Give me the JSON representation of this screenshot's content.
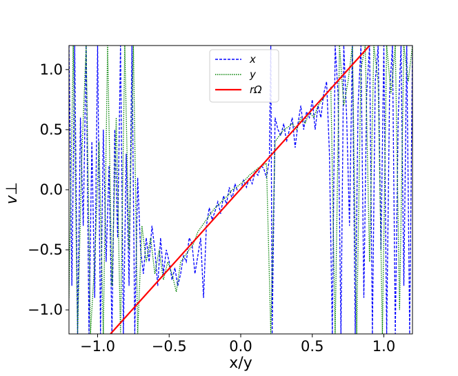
{
  "chart_data": {
    "type": "line",
    "xlabel": "x/y",
    "ylabel": "v⊥",
    "xlim": [
      -1.2,
      1.2
    ],
    "ylim": [
      -1.2,
      1.2
    ],
    "xticks": [
      -1.0,
      -0.5,
      0.0,
      0.5,
      1.0
    ],
    "xtick_labels": [
      "−1.0",
      "−0.5",
      "0.0",
      "0.5",
      "1.0"
    ],
    "yticks": [
      -1.0,
      -0.5,
      0.0,
      0.5,
      1.0
    ],
    "ytick_labels": [
      "−1.0",
      "−0.5",
      "0.0",
      "0.5",
      "1.0"
    ],
    "grid": false,
    "legend_position": "top-center",
    "series": [
      {
        "name": "x",
        "color": "#0000ff",
        "style": "dashed",
        "x": [
          -1.2,
          -1.18,
          -1.16,
          -1.14,
          -1.12,
          -1.1,
          -1.08,
          -1.06,
          -1.04,
          -1.02,
          -1.0,
          -0.98,
          -0.96,
          -0.94,
          -0.92,
          -0.9,
          -0.88,
          -0.86,
          -0.84,
          -0.82,
          -0.8,
          -0.78,
          -0.76,
          -0.74,
          -0.72,
          -0.7,
          -0.68,
          -0.66,
          -0.64,
          -0.62,
          -0.6,
          -0.58,
          -0.56,
          -0.54,
          -0.52,
          -0.5,
          -0.48,
          -0.46,
          -0.44,
          -0.42,
          -0.4,
          -0.38,
          -0.36,
          -0.34,
          -0.32,
          -0.3,
          -0.28,
          -0.26,
          -0.24,
          -0.22,
          -0.2,
          -0.18,
          -0.16,
          -0.14,
          -0.12,
          -0.1,
          -0.08,
          -0.06,
          -0.04,
          -0.02,
          0.0,
          0.02,
          0.04,
          0.06,
          0.08,
          0.1,
          0.12,
          0.14,
          0.16,
          0.18,
          0.2,
          0.21,
          0.22,
          0.24,
          0.26,
          0.28,
          0.3,
          0.32,
          0.34,
          0.36,
          0.38,
          0.4,
          0.42,
          0.44,
          0.46,
          0.48,
          0.5,
          0.52,
          0.54,
          0.56,
          0.58,
          0.6,
          0.62,
          0.64,
          0.66,
          0.68,
          0.7,
          0.72,
          0.74,
          0.76,
          0.78,
          0.8,
          0.82,
          0.84,
          0.86,
          0.88,
          0.9,
          0.92,
          0.94,
          0.96,
          0.98,
          1.0,
          1.02,
          1.04,
          1.06,
          1.08,
          1.1,
          1.12,
          1.14,
          1.16,
          1.18,
          1.2
        ],
        "y": [
          1.2,
          -0.8,
          1.2,
          -1.2,
          0.6,
          -0.3,
          1.2,
          -1.2,
          0.4,
          -0.9,
          1.2,
          -1.2,
          0.5,
          -0.6,
          0.2,
          -1.2,
          0.5,
          -0.4,
          1.2,
          -1.2,
          0.3,
          -0.8,
          1.2,
          -1.2,
          0.1,
          -0.5,
          -0.7,
          -0.4,
          -0.6,
          -0.3,
          -0.5,
          -0.8,
          -0.4,
          -0.7,
          -0.5,
          -0.6,
          -0.75,
          -0.65,
          -0.8,
          -0.7,
          -0.55,
          -0.6,
          -0.4,
          -0.45,
          -0.7,
          -0.55,
          -0.4,
          -0.9,
          -0.3,
          -0.15,
          -0.25,
          -0.18,
          -0.1,
          -0.2,
          -0.05,
          -0.12,
          0.02,
          -0.08,
          0.05,
          -0.02,
          0.0,
          0.08,
          0.02,
          0.1,
          0.05,
          0.15,
          0.12,
          0.2,
          0.18,
          0.1,
          0.25,
          1.2,
          -1.2,
          0.6,
          0.5,
          0.45,
          0.55,
          0.4,
          0.5,
          0.6,
          0.35,
          0.55,
          0.7,
          0.5,
          0.65,
          0.6,
          0.75,
          0.5,
          0.7,
          0.6,
          0.8,
          0.9,
          0.3,
          -1.2,
          1.2,
          0.8,
          -1.2,
          1.2,
          0.6,
          -0.3,
          1.2,
          -1.2,
          0.7,
          1.2,
          -0.9,
          0.8,
          1.2,
          -1.2,
          0.9,
          1.2,
          -0.5,
          1.2,
          -1.2,
          0.8,
          1.2,
          -1.2,
          0.6,
          1.2,
          -0.8,
          1.2,
          -1.2,
          1.2
        ]
      },
      {
        "name": "y",
        "color": "#008000",
        "style": "dotted",
        "x": [
          -1.2,
          -1.17,
          -1.14,
          -1.11,
          -1.08,
          -1.05,
          -1.02,
          -0.99,
          -0.96,
          -0.93,
          -0.9,
          -0.87,
          -0.84,
          -0.81,
          -0.78,
          -0.75,
          -0.72,
          -0.69,
          -0.66,
          -0.63,
          -0.6,
          -0.57,
          -0.54,
          -0.51,
          -0.48,
          -0.45,
          -0.42,
          -0.39,
          -0.36,
          -0.33,
          -0.3,
          -0.27,
          -0.24,
          -0.21,
          -0.18,
          -0.15,
          -0.12,
          -0.09,
          -0.06,
          -0.03,
          0.0,
          0.03,
          0.06,
          0.09,
          0.12,
          0.15,
          0.18,
          0.21,
          0.24,
          0.27,
          0.3,
          0.33,
          0.36,
          0.39,
          0.42,
          0.45,
          0.48,
          0.51,
          0.54,
          0.57,
          0.6,
          0.63,
          0.66,
          0.69,
          0.72,
          0.75,
          0.78,
          0.81,
          0.84,
          0.87,
          0.9,
          0.93,
          0.96,
          0.99,
          1.02,
          1.05,
          1.08,
          1.11,
          1.14,
          1.17,
          1.2
        ],
        "y": [
          -0.9,
          1.2,
          -1.2,
          0.3,
          1.2,
          -1.2,
          -0.6,
          0.4,
          -1.2,
          1.2,
          -0.8,
          0.6,
          -1.2,
          1.2,
          -0.5,
          1.2,
          -1.2,
          -0.3,
          -0.6,
          -0.4,
          -0.7,
          -0.5,
          -0.75,
          -0.6,
          -0.7,
          -0.85,
          -0.6,
          -0.55,
          -0.5,
          -0.45,
          -0.35,
          -0.3,
          -0.25,
          -0.2,
          -0.15,
          -0.12,
          -0.08,
          -0.05,
          0.0,
          0.02,
          0.05,
          0.08,
          0.12,
          0.15,
          0.18,
          0.2,
          0.22,
          -1.2,
          0.4,
          0.45,
          0.5,
          0.52,
          0.55,
          0.5,
          0.6,
          0.55,
          0.65,
          0.6,
          0.7,
          0.75,
          0.8,
          0.85,
          -1.2,
          1.2,
          0.7,
          0.9,
          1.2,
          -1.2,
          1.0,
          1.2,
          -0.6,
          1.2,
          0.9,
          -1.2,
          1.2,
          0.8,
          1.2,
          -1.0,
          1.2,
          0.9,
          1.2
        ]
      },
      {
        "name": "rΩ",
        "color": "#ff0000",
        "style": "solid",
        "x": [
          -0.91,
          0.9
        ],
        "y": [
          -1.2,
          1.2
        ]
      }
    ]
  }
}
